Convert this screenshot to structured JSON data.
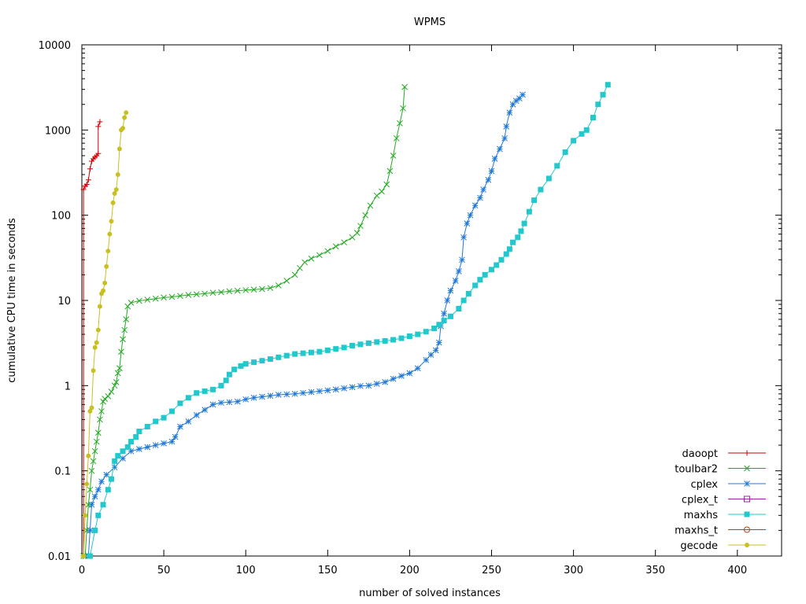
{
  "chart_data": {
    "type": "line",
    "title": "WPMS",
    "xlabel": "number of solved instances",
    "ylabel": "cumulative CPU time in seconds",
    "xlim": [
      0,
      427
    ],
    "ylim": [
      0.01,
      10000
    ],
    "yscale": "log",
    "xticks": [
      0,
      50,
      100,
      150,
      200,
      250,
      300,
      350,
      400
    ],
    "yticks": [
      0.01,
      0.1,
      1,
      10,
      100,
      1000,
      10000
    ],
    "ytick_labels": [
      "0.01",
      "0.1",
      "1",
      "10",
      "100",
      "1000",
      "10000"
    ],
    "legend_position": "bottom-right",
    "series": [
      {
        "name": "daoopt",
        "color": "#cc0000",
        "marker": "plus",
        "points": [
          [
            1,
            0.01
          ],
          [
            1,
            200
          ],
          [
            2,
            220
          ],
          [
            3,
            230
          ],
          [
            4,
            260
          ],
          [
            5,
            350
          ],
          [
            6,
            430
          ],
          [
            7,
            460
          ],
          [
            8,
            480
          ],
          [
            9,
            500
          ],
          [
            10,
            530
          ],
          [
            10,
            1100
          ],
          [
            11,
            1250
          ]
        ]
      },
      {
        "name": "toulbar2",
        "color": "#22aa22",
        "marker": "cross",
        "points": [
          [
            1,
            0.01
          ],
          [
            2,
            0.01
          ],
          [
            3,
            0.02
          ],
          [
            4,
            0.04
          ],
          [
            5,
            0.06
          ],
          [
            6,
            0.1
          ],
          [
            7,
            0.13
          ],
          [
            8,
            0.17
          ],
          [
            9,
            0.22
          ],
          [
            10,
            0.28
          ],
          [
            11,
            0.4
          ],
          [
            12,
            0.5
          ],
          [
            13,
            0.65
          ],
          [
            14,
            0.7
          ],
          [
            16,
            0.75
          ],
          [
            18,
            0.85
          ],
          [
            20,
            1.0
          ],
          [
            21,
            1.1
          ],
          [
            22,
            1.4
          ],
          [
            23,
            1.6
          ],
          [
            24,
            2.5
          ],
          [
            25,
            3.5
          ],
          [
            26,
            4.5
          ],
          [
            27,
            6.0
          ],
          [
            28,
            8.5
          ],
          [
            30,
            9.4
          ],
          [
            35,
            9.9
          ],
          [
            40,
            10.2
          ],
          [
            45,
            10.5
          ],
          [
            50,
            10.8
          ],
          [
            55,
            11.0
          ],
          [
            60,
            11.3
          ],
          [
            65,
            11.6
          ],
          [
            70,
            11.8
          ],
          [
            75,
            12.0
          ],
          [
            80,
            12.3
          ],
          [
            85,
            12.5
          ],
          [
            90,
            12.8
          ],
          [
            95,
            13.0
          ],
          [
            100,
            13.2
          ],
          [
            105,
            13.4
          ],
          [
            110,
            13.6
          ],
          [
            115,
            14.0
          ],
          [
            120,
            15.0
          ],
          [
            125,
            17.0
          ],
          [
            130,
            20.0
          ],
          [
            133,
            24.0
          ],
          [
            136,
            28.0
          ],
          [
            140,
            31.0
          ],
          [
            145,
            34.0
          ],
          [
            150,
            38.0
          ],
          [
            155,
            43.0
          ],
          [
            160,
            48.0
          ],
          [
            165,
            55.0
          ],
          [
            168,
            62.0
          ],
          [
            170,
            75.0
          ],
          [
            173,
            100.0
          ],
          [
            176,
            130.0
          ],
          [
            180,
            170.0
          ],
          [
            183,
            190.0
          ],
          [
            186,
            230.0
          ],
          [
            188,
            330.0
          ],
          [
            190,
            500.0
          ],
          [
            192,
            800.0
          ],
          [
            194,
            1200.0
          ],
          [
            196,
            1800.0
          ],
          [
            197,
            3200.0
          ]
        ]
      },
      {
        "name": "cplex",
        "color": "#1f78d8",
        "marker": "star",
        "points": [
          [
            4,
            0.01
          ],
          [
            5,
            0.02
          ],
          [
            6,
            0.04
          ],
          [
            8,
            0.05
          ],
          [
            10,
            0.06
          ],
          [
            12,
            0.075
          ],
          [
            15,
            0.09
          ],
          [
            20,
            0.11
          ],
          [
            25,
            0.14
          ],
          [
            30,
            0.17
          ],
          [
            35,
            0.18
          ],
          [
            40,
            0.19
          ],
          [
            45,
            0.2
          ],
          [
            50,
            0.21
          ],
          [
            55,
            0.22
          ],
          [
            57,
            0.25
          ],
          [
            60,
            0.33
          ],
          [
            65,
            0.38
          ],
          [
            70,
            0.45
          ],
          [
            75,
            0.52
          ],
          [
            80,
            0.6
          ],
          [
            85,
            0.63
          ],
          [
            90,
            0.64
          ],
          [
            95,
            0.65
          ],
          [
            100,
            0.69
          ],
          [
            105,
            0.72
          ],
          [
            110,
            0.74
          ],
          [
            115,
            0.76
          ],
          [
            120,
            0.78
          ],
          [
            125,
            0.79
          ],
          [
            130,
            0.8
          ],
          [
            135,
            0.82
          ],
          [
            140,
            0.84
          ],
          [
            145,
            0.86
          ],
          [
            150,
            0.88
          ],
          [
            155,
            0.9
          ],
          [
            160,
            0.93
          ],
          [
            165,
            0.96
          ],
          [
            170,
            0.99
          ],
          [
            175,
            1.0
          ],
          [
            180,
            1.05
          ],
          [
            185,
            1.1
          ],
          [
            190,
            1.2
          ],
          [
            195,
            1.3
          ],
          [
            200,
            1.4
          ],
          [
            205,
            1.6
          ],
          [
            210,
            2.0
          ],
          [
            213,
            2.3
          ],
          [
            216,
            2.6
          ],
          [
            218,
            3.2
          ],
          [
            219,
            5.0
          ],
          [
            221,
            7.0
          ],
          [
            223,
            10.0
          ],
          [
            225,
            13.0
          ],
          [
            228,
            17.0
          ],
          [
            230,
            22.0
          ],
          [
            232,
            30.0
          ],
          [
            233,
            55.0
          ],
          [
            235,
            80.0
          ],
          [
            237,
            100.0
          ],
          [
            240,
            130.0
          ],
          [
            243,
            160.0
          ],
          [
            245,
            200.0
          ],
          [
            248,
            260.0
          ],
          [
            250,
            330.0
          ],
          [
            252,
            460.0
          ],
          [
            255,
            600.0
          ],
          [
            258,
            800.0
          ],
          [
            259,
            1100.0
          ],
          [
            261,
            1600.0
          ],
          [
            263,
            2000.0
          ],
          [
            265,
            2200.0
          ],
          [
            267,
            2350.0
          ],
          [
            269,
            2600.0
          ]
        ]
      },
      {
        "name": "cplex_t",
        "color": "#aa22aa",
        "marker": "box-open",
        "points": []
      },
      {
        "name": "maxhs",
        "color": "#22c8cc",
        "marker": "box-filled",
        "points": [
          [
            5,
            0.01
          ],
          [
            8,
            0.02
          ],
          [
            10,
            0.03
          ],
          [
            13,
            0.04
          ],
          [
            16,
            0.06
          ],
          [
            18,
            0.08
          ],
          [
            20,
            0.13
          ],
          [
            22,
            0.15
          ],
          [
            25,
            0.17
          ],
          [
            28,
            0.19
          ],
          [
            30,
            0.22
          ],
          [
            33,
            0.25
          ],
          [
            35,
            0.29
          ],
          [
            40,
            0.33
          ],
          [
            45,
            0.38
          ],
          [
            50,
            0.42
          ],
          [
            55,
            0.5
          ],
          [
            60,
            0.62
          ],
          [
            65,
            0.72
          ],
          [
            70,
            0.82
          ],
          [
            75,
            0.86
          ],
          [
            80,
            0.9
          ],
          [
            85,
            1.0
          ],
          [
            88,
            1.15
          ],
          [
            90,
            1.35
          ],
          [
            93,
            1.55
          ],
          [
            97,
            1.7
          ],
          [
            100,
            1.8
          ],
          [
            105,
            1.88
          ],
          [
            110,
            1.96
          ],
          [
            115,
            2.05
          ],
          [
            120,
            2.15
          ],
          [
            125,
            2.25
          ],
          [
            130,
            2.35
          ],
          [
            135,
            2.4
          ],
          [
            140,
            2.45
          ],
          [
            145,
            2.5
          ],
          [
            150,
            2.6
          ],
          [
            155,
            2.7
          ],
          [
            160,
            2.8
          ],
          [
            165,
            2.95
          ],
          [
            170,
            3.05
          ],
          [
            175,
            3.15
          ],
          [
            180,
            3.25
          ],
          [
            185,
            3.35
          ],
          [
            190,
            3.45
          ],
          [
            195,
            3.6
          ],
          [
            200,
            3.8
          ],
          [
            205,
            4.0
          ],
          [
            210,
            4.3
          ],
          [
            215,
            4.7
          ],
          [
            218,
            5.2
          ],
          [
            221,
            5.8
          ],
          [
            225,
            6.5
          ],
          [
            230,
            8.0
          ],
          [
            233,
            10.0
          ],
          [
            236,
            12.0
          ],
          [
            240,
            15.0
          ],
          [
            243,
            17.5
          ],
          [
            246,
            20.0
          ],
          [
            250,
            23.0
          ],
          [
            253,
            26.0
          ],
          [
            256,
            30.0
          ],
          [
            259,
            35.0
          ],
          [
            261,
            40.0
          ],
          [
            263,
            48.0
          ],
          [
            266,
            55.0
          ],
          [
            268,
            65.0
          ],
          [
            270,
            80.0
          ],
          [
            273,
            110.0
          ],
          [
            276,
            150.0
          ],
          [
            280,
            200.0
          ],
          [
            285,
            270.0
          ],
          [
            290,
            380.0
          ],
          [
            295,
            550.0
          ],
          [
            300,
            750.0
          ],
          [
            305,
            900.0
          ],
          [
            308,
            1000.0
          ],
          [
            312,
            1400.0
          ],
          [
            315,
            2000.0
          ],
          [
            318,
            2600.0
          ],
          [
            321,
            3400.0
          ]
        ]
      },
      {
        "name": "maxhs_t",
        "color": "#b34700",
        "marker": "circle-open",
        "points": []
      },
      {
        "name": "gecode",
        "color": "#c8c020",
        "marker": "circle-filled",
        "points": [
          [
            1,
            0.01
          ],
          [
            2,
            0.03
          ],
          [
            3,
            0.07
          ],
          [
            4,
            0.15
          ],
          [
            5,
            0.5
          ],
          [
            6,
            0.55
          ],
          [
            7,
            1.5
          ],
          [
            8,
            2.8
          ],
          [
            9,
            3.2
          ],
          [
            10,
            4.5
          ],
          [
            11,
            8.5
          ],
          [
            12,
            12.0
          ],
          [
            13,
            13.0
          ],
          [
            14,
            16.0
          ],
          [
            15,
            25.0
          ],
          [
            16,
            38.0
          ],
          [
            17,
            60.0
          ],
          [
            18,
            85.0
          ],
          [
            19,
            140.0
          ],
          [
            20,
            180.0
          ],
          [
            21,
            200.0
          ],
          [
            22,
            300.0
          ],
          [
            23,
            600.0
          ],
          [
            24,
            1000.0
          ],
          [
            25,
            1050.0
          ],
          [
            26,
            1400.0
          ],
          [
            27,
            1600.0
          ]
        ]
      }
    ]
  }
}
